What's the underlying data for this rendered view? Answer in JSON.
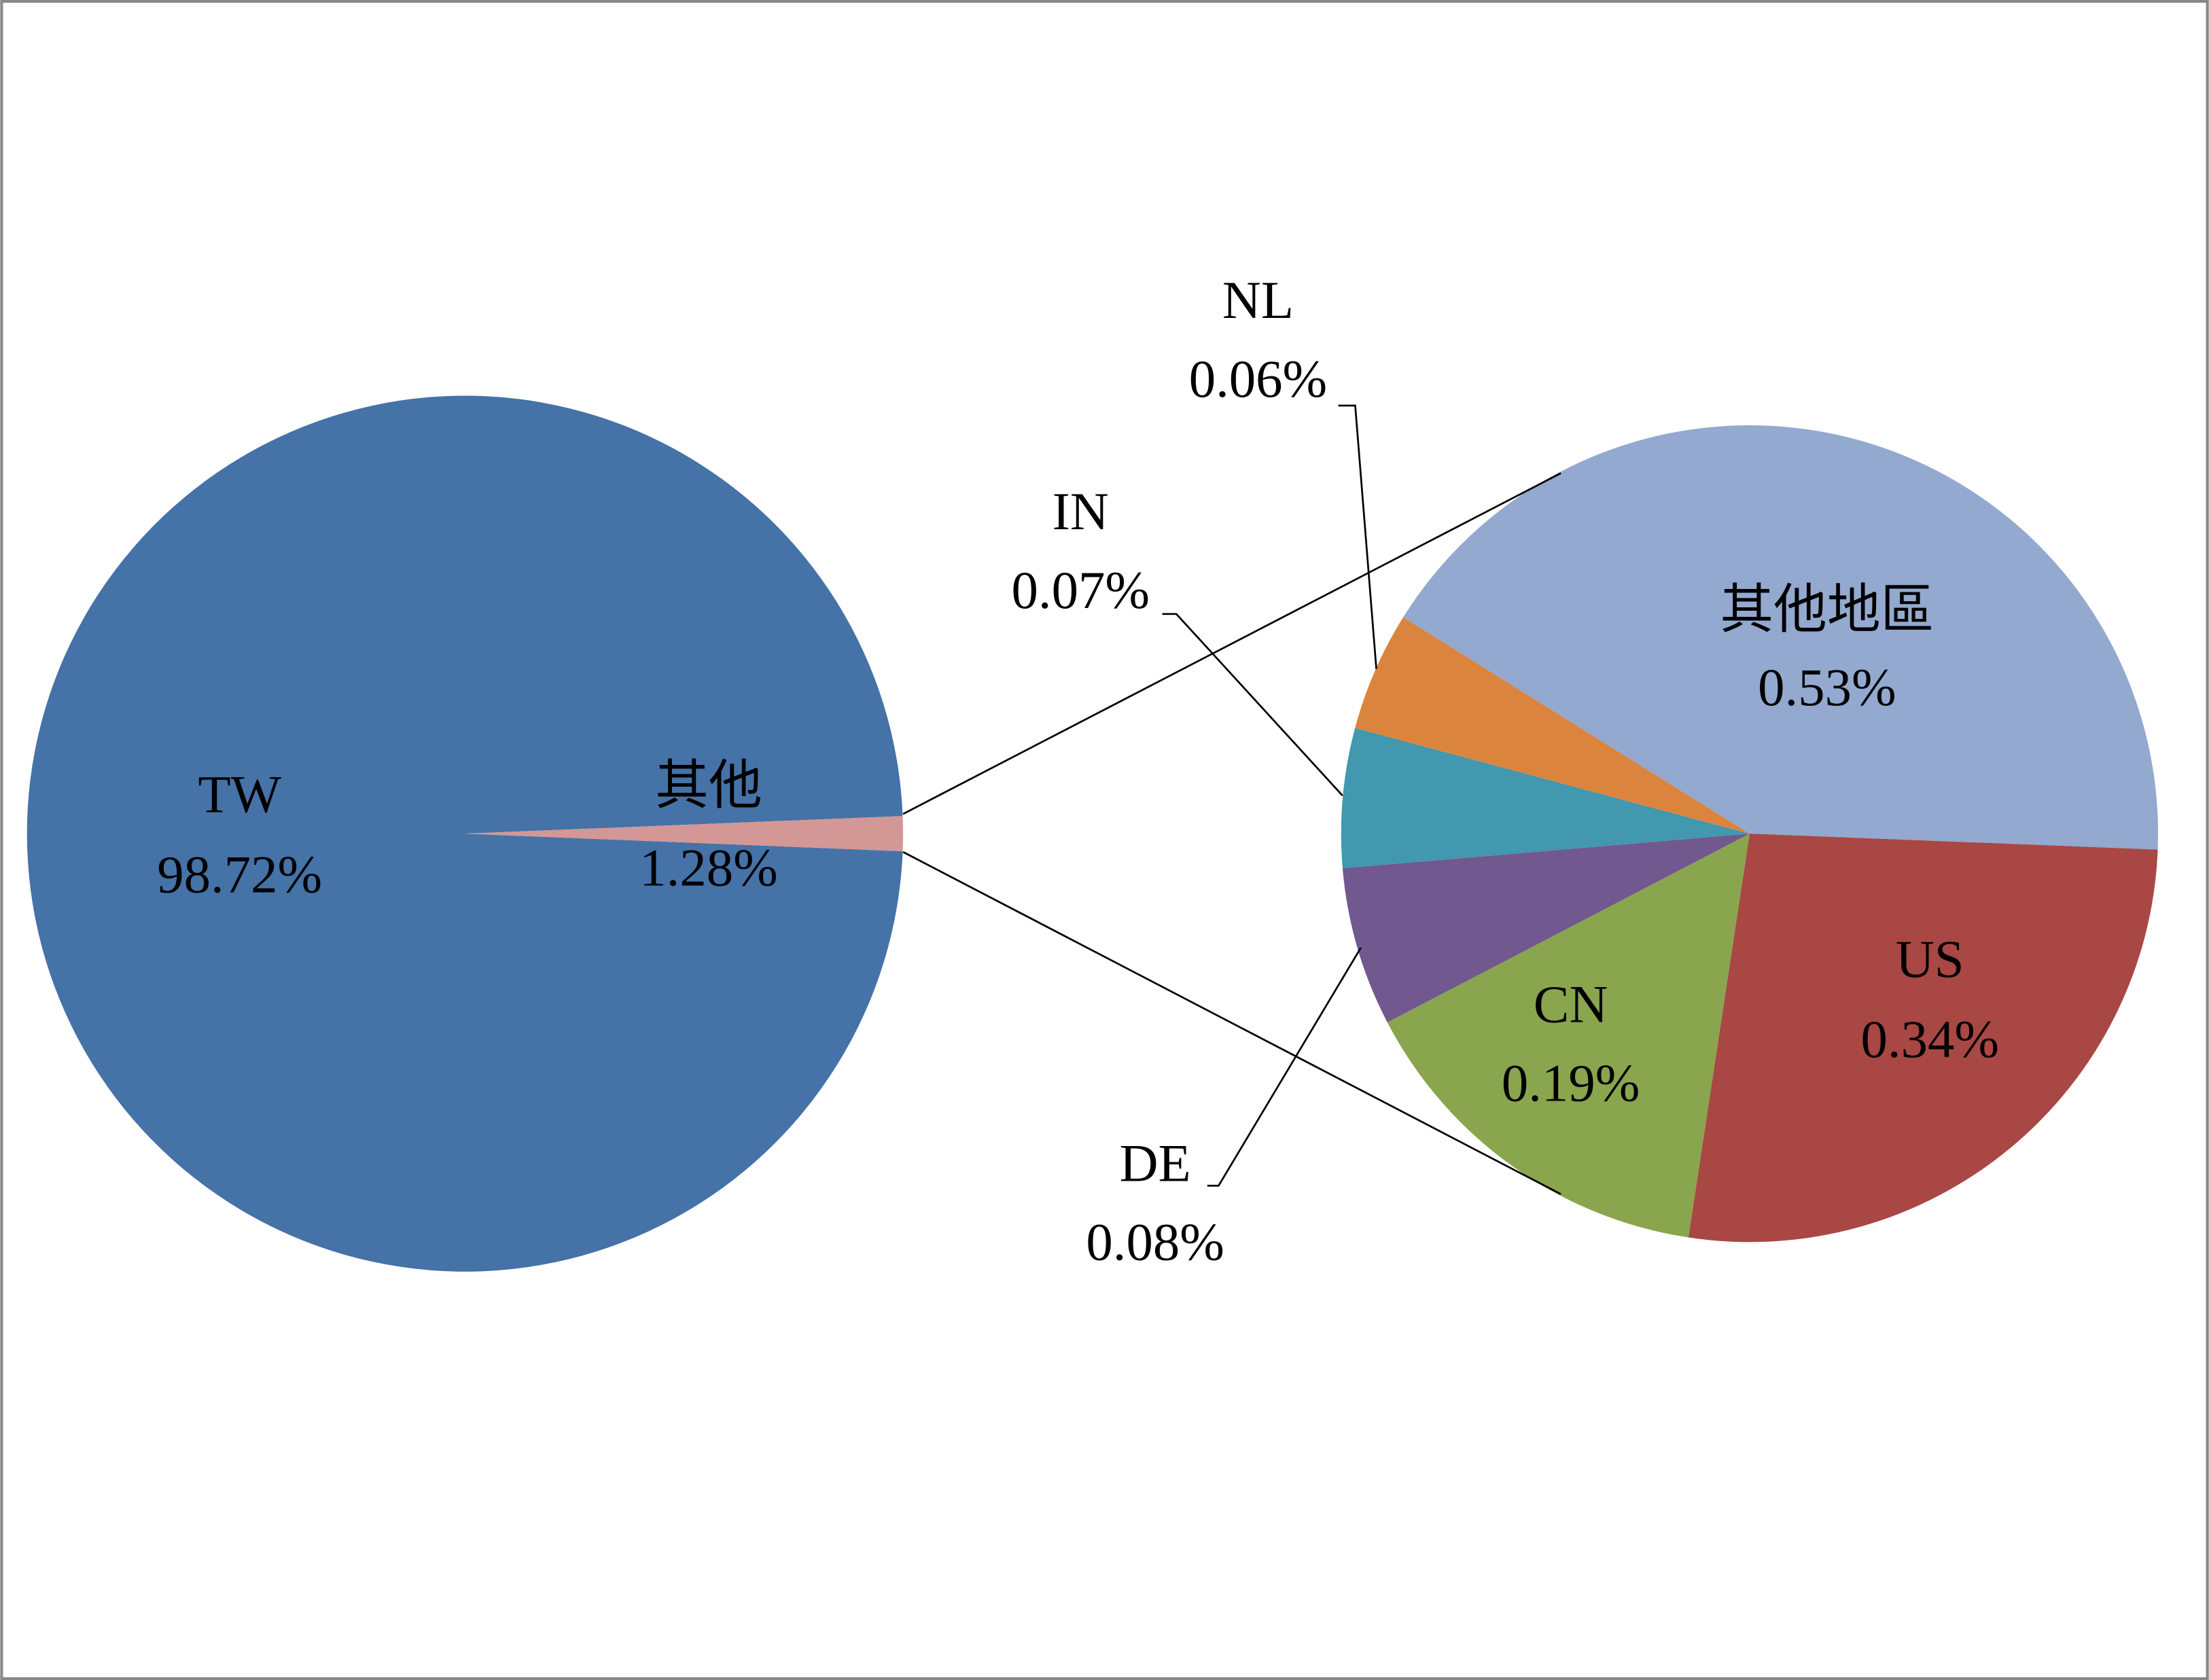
{
  "chart_data": [
    {
      "type": "pie",
      "categories": [
        "TW",
        "其他"
      ],
      "values": [
        98.72,
        1.28
      ],
      "value_labels": [
        "98.72%",
        "1.28%"
      ],
      "colors": [
        "#4572a7",
        "#d39896"
      ]
    },
    {
      "type": "pie",
      "categories": [
        "其他地區",
        "US",
        "CN",
        "DE",
        "IN",
        "NL"
      ],
      "values": [
        0.53,
        0.34,
        0.19,
        0.08,
        0.07,
        0.06
      ],
      "value_labels": [
        "0.53%",
        "0.34%",
        "0.19%",
        "0.08%",
        "0.07%",
        "0.06%"
      ],
      "colors": [
        "#93a9cf",
        "#a84744",
        "#89a54e",
        "#71588f",
        "#4198af",
        "#db843d"
      ]
    }
  ]
}
